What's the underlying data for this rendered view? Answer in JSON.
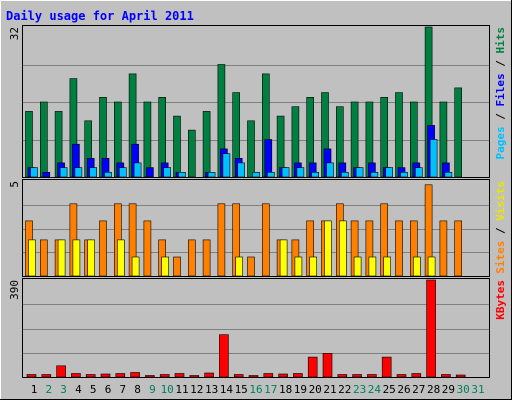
{
  "chart_data": [
    {
      "type": "bar",
      "title": "Daily usage for April 2011",
      "y_max_label": "32",
      "ylim": [
        0,
        32
      ],
      "side_label": [
        "Pages",
        "Files",
        "Hits"
      ],
      "categories": [
        "1",
        "2",
        "3",
        "4",
        "5",
        "6",
        "7",
        "8",
        "9",
        "10",
        "11",
        "12",
        "13",
        "14",
        "15",
        "16",
        "17",
        "18",
        "19",
        "20",
        "21",
        "22",
        "23",
        "24",
        "25",
        "26",
        "27",
        "28",
        "29",
        "30",
        "31"
      ],
      "weekend_days": [
        "2",
        "3",
        "9",
        "10",
        "16",
        "17",
        "23",
        "24",
        "30",
        "31"
      ],
      "series": [
        {
          "name": "Hits",
          "values": [
            14,
            16,
            14,
            21,
            12,
            17,
            16,
            22,
            16,
            17,
            13,
            10,
            14,
            24,
            18,
            12,
            22,
            13,
            15,
            17,
            18,
            15,
            16,
            16,
            17,
            18,
            16,
            32,
            16,
            19,
            0
          ]
        },
        {
          "name": "Files",
          "values": [
            2,
            1,
            3,
            7,
            4,
            4,
            3,
            7,
            2,
            3,
            1,
            0,
            1,
            6,
            4,
            0,
            8,
            2,
            3,
            3,
            6,
            3,
            2,
            3,
            2,
            2,
            3,
            11,
            3,
            0,
            0
          ]
        },
        {
          "name": "Pages",
          "values": [
            2,
            0,
            2,
            2,
            2,
            1,
            2,
            3,
            0,
            2,
            1,
            0,
            1,
            5,
            3,
            1,
            1,
            2,
            2,
            1,
            3,
            1,
            2,
            1,
            2,
            1,
            2,
            8,
            1,
            0,
            0
          ]
        }
      ]
    },
    {
      "type": "bar",
      "y_max_label": "5",
      "ylim": [
        0,
        5
      ],
      "side_label": [
        "Sites",
        "Visits"
      ],
      "categories": [
        "1",
        "2",
        "3",
        "4",
        "5",
        "6",
        "7",
        "8",
        "9",
        "10",
        "11",
        "12",
        "13",
        "14",
        "15",
        "16",
        "17",
        "18",
        "19",
        "20",
        "21",
        "22",
        "23",
        "24",
        "25",
        "26",
        "27",
        "28",
        "29",
        "30",
        "31"
      ],
      "series": [
        {
          "name": "Sites",
          "values": [
            2.9,
            1.9,
            1.9,
            3.8,
            1.9,
            2.9,
            3.8,
            3.8,
            2.9,
            1.9,
            1.0,
            1.9,
            1.9,
            3.8,
            3.8,
            1.0,
            3.8,
            1.9,
            1.9,
            2.9,
            2.9,
            3.8,
            2.9,
            2.9,
            3.8,
            2.9,
            2.9,
            4.8,
            2.9,
            2.9,
            0
          ]
        },
        {
          "name": "Visits",
          "values": [
            1.9,
            0,
            1.9,
            1.9,
            1.9,
            0,
            1.9,
            1.0,
            0,
            1.0,
            0,
            0,
            0,
            0,
            1.0,
            0,
            0,
            1.9,
            1.0,
            1.0,
            2.9,
            2.9,
            1.0,
            1.0,
            1.0,
            0,
            1.0,
            1.0,
            0,
            0,
            0
          ]
        }
      ]
    },
    {
      "type": "bar",
      "y_max_label": "390",
      "ylim": [
        0,
        390
      ],
      "side_label": [
        "KBytes"
      ],
      "categories": [
        "1",
        "2",
        "3",
        "4",
        "5",
        "6",
        "7",
        "8",
        "9",
        "10",
        "11",
        "12",
        "13",
        "14",
        "15",
        "16",
        "17",
        "18",
        "19",
        "20",
        "21",
        "22",
        "23",
        "24",
        "25",
        "26",
        "27",
        "28",
        "29",
        "30",
        "31"
      ],
      "series": [
        {
          "name": "KBytes",
          "values": [
            10,
            10,
            45,
            14,
            10,
            12,
            14,
            18,
            6,
            10,
            14,
            6,
            16,
            170,
            10,
            6,
            14,
            12,
            14,
            80,
            95,
            10,
            10,
            10,
            80,
            10,
            14,
            390,
            10,
            8,
            0
          ]
        }
      ]
    }
  ],
  "colors": {
    "background": "#c0c0c0",
    "border_light": "#ffffff",
    "border_dark": "#808080",
    "plot_background": "#c0c0c0",
    "title_text": "#0000ff",
    "hits": "#008040",
    "files": "#0000ff",
    "pages": "#00c0ff",
    "sites": "#ff8000",
    "visits": "#ffff00",
    "kbytes": "#ff0000",
    "gridline": "#808080",
    "weekday_label": "#000000",
    "weekend_label": "#00805c"
  }
}
